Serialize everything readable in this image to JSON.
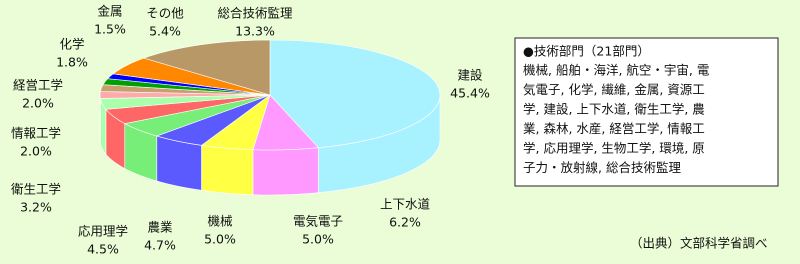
{
  "chart_data": {
    "type": "pie3d",
    "categories": [
      "建設",
      "上下水道",
      "電気電子",
      "機械",
      "農業",
      "応用理学",
      "衛生工学",
      "情報工学",
      "経営工学",
      "化学",
      "金属",
      "その他",
      "総合技術監理"
    ],
    "values": [
      45.4,
      6.2,
      5.0,
      5.0,
      4.7,
      4.5,
      3.2,
      2.0,
      2.0,
      1.8,
      1.5,
      5.4,
      13.3
    ],
    "value_labels": [
      "45.4%",
      "6.2%",
      "5.0%",
      "5.0%",
      "4.7%",
      "4.5%",
      "3.2%",
      "2.0%",
      "2.0%",
      "1.8%",
      "1.5%",
      "5.4%",
      "13.3%"
    ],
    "colors": [
      "#a8f2ff",
      "#ff99ff",
      "#ffff44",
      "#5a5aff",
      "#77ee77",
      "#ff6666",
      "#aaffaa",
      "#ffaaaa",
      "#c8a070",
      "#00a000",
      "#0000ff",
      "#ff8800",
      "#b99868"
    ],
    "legend_title": "●技術部門（21部門）",
    "legend_text": [
      "機械, 船舶・海洋, 航空・宇宙, 電",
      "気電子, 化学, 繊維, 金属, 資源工",
      "学, 建設, 上下水道, 衛生工学, 農",
      "業, 森林, 水産, 経営工学, 情報工",
      "学, 応用理学, 生物工学, 環境, 原",
      "子力・放射線, 総合技術監理"
    ],
    "source": "（出典）文部科学省調べ"
  }
}
